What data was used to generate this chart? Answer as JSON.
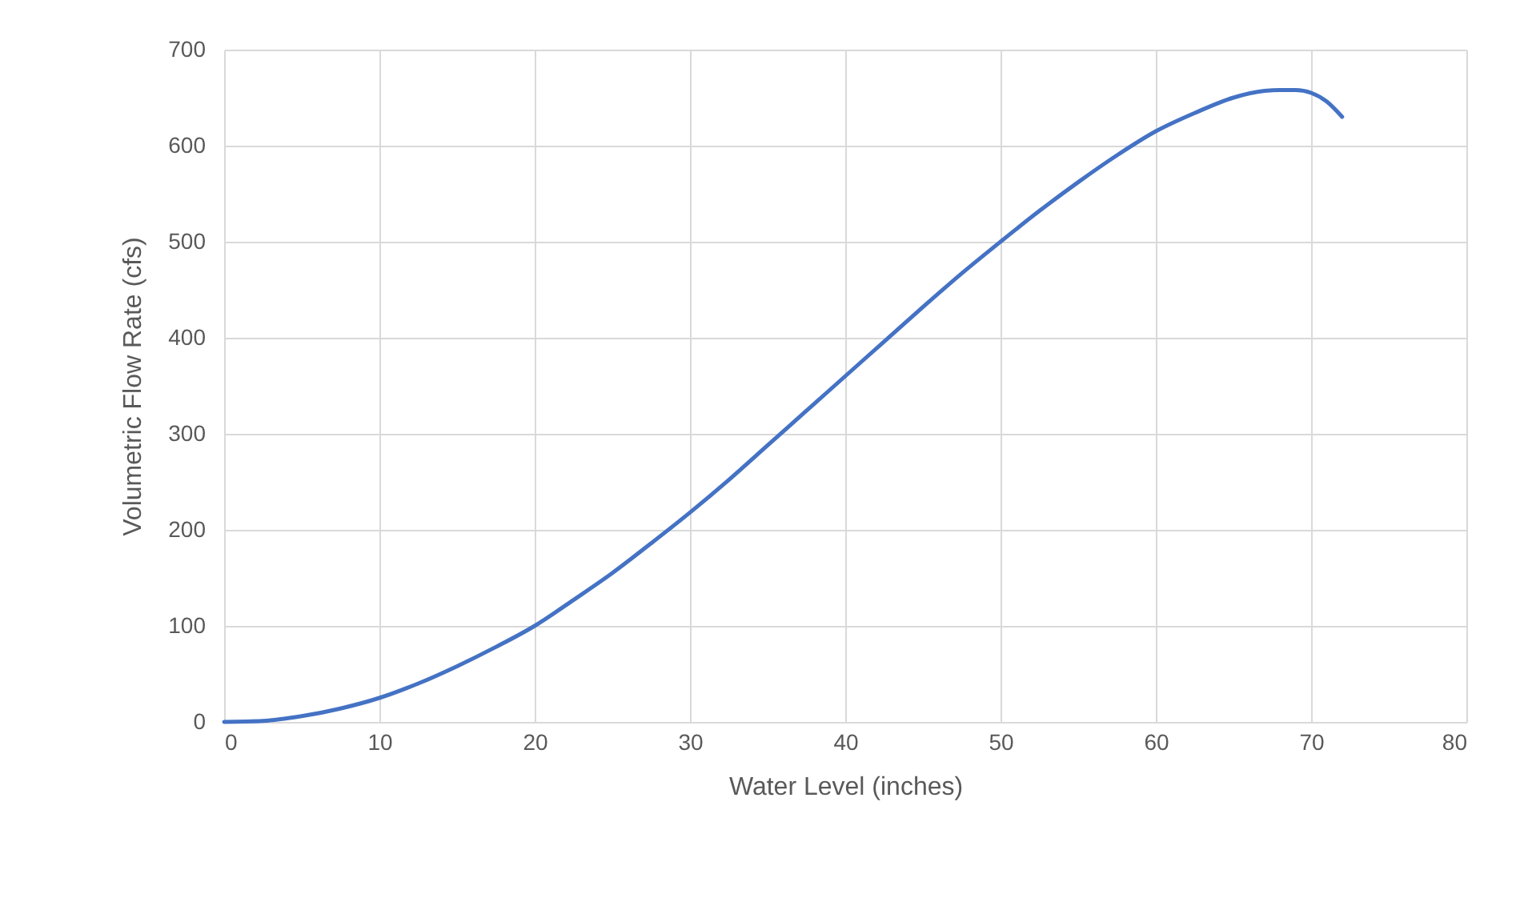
{
  "chart_data": {
    "type": "line",
    "xlabel": "Water Level  (inches)",
    "ylabel": "Volumetric Flow Rate (cfs)",
    "xlim": [
      0,
      80
    ],
    "xticks": [
      0,
      10,
      20,
      30,
      40,
      50,
      60,
      70,
      80
    ],
    "ylim": [
      0,
      700
    ],
    "yticks": [
      0,
      100,
      200,
      300,
      400,
      500,
      600,
      700
    ],
    "grid": true,
    "series": [
      {
        "color": "#4472c4",
        "x": [
          0,
          2.5,
          5,
          7.5,
          10,
          12.5,
          15,
          17.5,
          20,
          22.5,
          25,
          27.5,
          30,
          32.5,
          35,
          37.5,
          40,
          42.5,
          45,
          47.5,
          50,
          52.5,
          55,
          57.5,
          60,
          62.5,
          65,
          67,
          68,
          69,
          70,
          71,
          72
        ],
        "values": [
          0,
          1,
          6,
          14,
          25,
          40,
          58,
          78,
          100,
          127,
          155,
          186,
          218,
          252,
          288,
          324,
          360,
          396,
          432,
          467,
          500,
          532,
          562,
          590,
          615,
          634,
          650,
          657,
          658,
          658,
          655,
          646,
          630
        ]
      }
    ]
  }
}
